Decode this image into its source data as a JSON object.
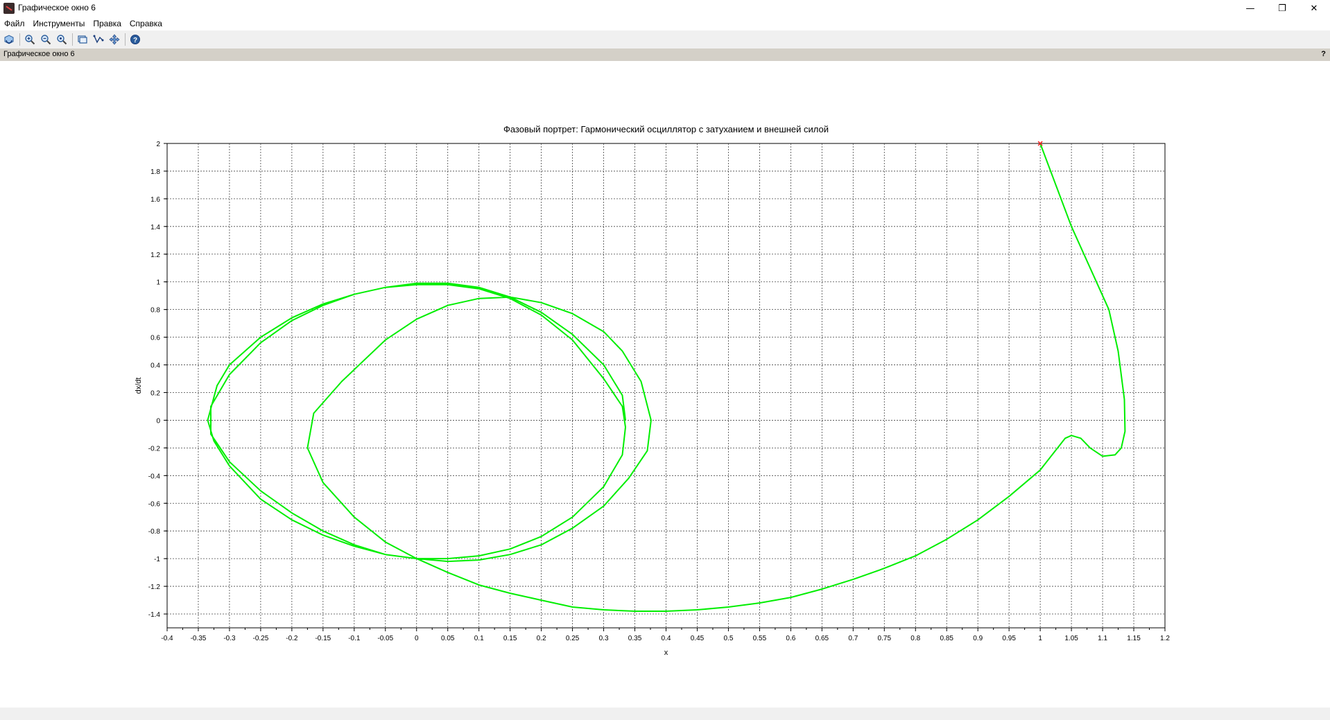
{
  "window": {
    "title": "Графическое окно 6",
    "minimize_glyph": "—",
    "restore_glyph": "❐",
    "close_glyph": "✕"
  },
  "menu": {
    "items": [
      "Файл",
      "Инструменты",
      "Правка",
      "Справка"
    ]
  },
  "toolbar": {
    "icons": [
      "rotate-icon",
      "zoom-in-icon",
      "zoom-out-icon",
      "zoom-reset-icon",
      "datatip-icon",
      "edit-curve-icon",
      "pan-icon",
      "help-icon"
    ]
  },
  "infobar": {
    "label": "Графическое окно 6",
    "help": "?"
  },
  "colors": {
    "curve": "#00ee00",
    "marker": "#ff2020",
    "grid": "#444444",
    "infobar": "#d4d0c8"
  },
  "chart_data": {
    "type": "line",
    "title": "Фазовый портрет: Гармонический осциллятор с затуханием и внешней силой",
    "xlabel": "x",
    "ylabel": "dx/dt",
    "xlim": [
      -0.4,
      1.2
    ],
    "ylim": [
      -1.5,
      2.0
    ],
    "grid": true,
    "x_ticks": [
      "-0.4",
      "-0.35",
      "-0.3",
      "-0.25",
      "-0.2",
      "-0.15",
      "-0.1",
      "-0.05",
      "0",
      "0.05",
      "0.1",
      "0.15",
      "0.2",
      "0.25",
      "0.3",
      "0.35",
      "0.4",
      "0.45",
      "0.5",
      "0.55",
      "0.6",
      "0.65",
      "0.7",
      "0.75",
      "0.8",
      "0.85",
      "0.9",
      "0.95",
      "1",
      "1.05",
      "1.1",
      "1.15",
      "1.2"
    ],
    "y_ticks": [
      "-1.4",
      "-1.2",
      "-1",
      "-0.8",
      "-0.6",
      "-0.4",
      "-0.2",
      "0",
      "0.2",
      "0.4",
      "0.6",
      "0.8",
      "1",
      "1.2",
      "1.4",
      "1.6",
      "1.8",
      "2"
    ],
    "start_point": {
      "x": 1.0,
      "y": 2.0
    },
    "series": [
      {
        "x": [
          1.0,
          1.05,
          1.08,
          1.11,
          1.125,
          1.135,
          1.136,
          1.13,
          1.12,
          1.1,
          1.08,
          1.065,
          1.05,
          1.04,
          1.0,
          0.95,
          0.9,
          0.85,
          0.8,
          0.75,
          0.7,
          0.65,
          0.6,
          0.55,
          0.5,
          0.45,
          0.4,
          0.35,
          0.3,
          0.25,
          0.2,
          0.15,
          0.1,
          0.05,
          0.0,
          -0.05,
          -0.1,
          -0.15,
          -0.175,
          -0.165,
          -0.12,
          -0.05,
          0.0,
          0.05,
          0.1,
          0.15,
          0.2,
          0.25,
          0.3,
          0.33,
          0.36,
          0.376,
          0.37,
          0.34,
          0.3,
          0.25,
          0.2,
          0.15,
          0.1,
          0.05,
          0.0,
          -0.05,
          -0.1,
          -0.15,
          -0.2,
          -0.25,
          -0.3,
          -0.33,
          -0.33,
          -0.3,
          -0.25,
          -0.2,
          -0.15,
          -0.1,
          -0.05,
          0.0,
          0.05,
          0.1,
          0.15,
          0.2,
          0.25,
          0.3,
          0.33,
          0.335,
          0.33,
          0.3,
          0.25,
          0.2,
          0.15,
          0.1,
          0.05,
          0.0,
          -0.05,
          -0.1,
          -0.15,
          -0.2,
          -0.25,
          -0.3,
          -0.325,
          -0.335,
          -0.32,
          -0.3,
          -0.25,
          -0.2,
          -0.15,
          -0.1,
          -0.05,
          0.0,
          0.05,
          0.1,
          0.15,
          0.2,
          0.25,
          0.3,
          0.33,
          0.335
        ],
        "y": [
          2.0,
          1.4,
          1.1,
          0.8,
          0.5,
          0.15,
          -0.08,
          -0.2,
          -0.25,
          -0.26,
          -0.2,
          -0.13,
          -0.11,
          -0.13,
          -0.36,
          -0.55,
          -0.72,
          -0.86,
          -0.98,
          -1.07,
          -1.15,
          -1.22,
          -1.28,
          -1.32,
          -1.35,
          -1.37,
          -1.38,
          -1.38,
          -1.37,
          -1.35,
          -1.3,
          -1.25,
          -1.19,
          -1.1,
          -1.0,
          -0.88,
          -0.7,
          -0.45,
          -0.2,
          0.05,
          0.28,
          0.58,
          0.73,
          0.83,
          0.88,
          0.89,
          0.85,
          0.77,
          0.64,
          0.5,
          0.28,
          0.0,
          -0.22,
          -0.42,
          -0.62,
          -0.78,
          -0.9,
          -0.97,
          -1.01,
          -1.02,
          -1.0,
          -0.97,
          -0.9,
          -0.8,
          -0.67,
          -0.51,
          -0.3,
          -0.1,
          0.1,
          0.33,
          0.56,
          0.72,
          0.83,
          0.91,
          0.96,
          0.98,
          0.98,
          0.95,
          0.88,
          0.76,
          0.58,
          0.3,
          0.1,
          -0.05,
          -0.25,
          -0.48,
          -0.7,
          -0.84,
          -0.93,
          -0.98,
          -1.0,
          -1.0,
          -0.97,
          -0.91,
          -0.83,
          -0.72,
          -0.57,
          -0.33,
          -0.15,
          0.0,
          0.25,
          0.4,
          0.6,
          0.74,
          0.84,
          0.91,
          0.96,
          0.99,
          0.99,
          0.96,
          0.89,
          0.78,
          0.62,
          0.4,
          0.18,
          0.0
        ]
      }
    ]
  }
}
